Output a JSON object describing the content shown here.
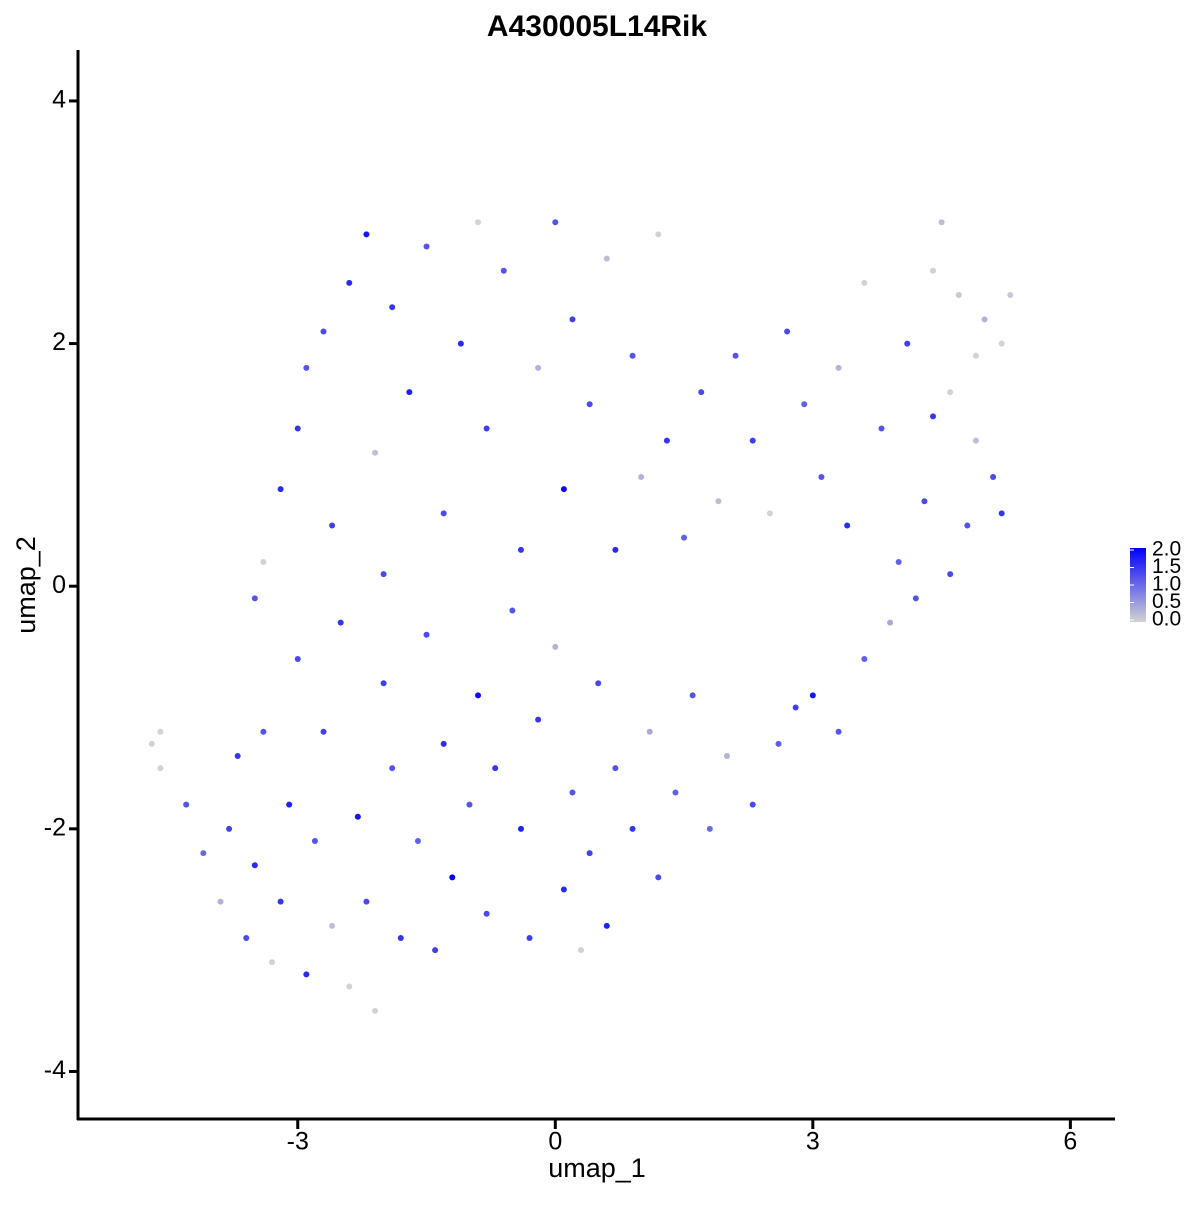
{
  "chart_data": {
    "type": "scatter",
    "title": "A430005L14Rik",
    "x_label": "umap_1",
    "y_label": "umap_2",
    "xlim": [
      -5.56,
      6.52
    ],
    "ylim": [
      -4.4,
      4.42
    ],
    "xticks": [
      -3,
      0,
      3,
      6
    ],
    "yticks": [
      -4,
      -2,
      0,
      2,
      4
    ],
    "low_color": "#d3d3d3",
    "high_color": "#0000ff",
    "colorbar_ticks": [
      {
        "value": 0,
        "label": "0.0"
      },
      {
        "value": 0.5,
        "label": "0.5"
      },
      {
        "value": 1,
        "label": "1.0"
      },
      {
        "value": 1.5,
        "label": "1.5"
      },
      {
        "value": 2,
        "label": "2.0"
      }
    ],
    "x": [
      -4.7,
      -4.6,
      -4.6,
      -4.3,
      -4.1,
      -3.9,
      -3.8,
      -3.7,
      -3.6,
      -3.5,
      -3.4,
      -3.3,
      -3.2,
      -3.1,
      -3.0,
      -2.9,
      -2.8,
      -2.7,
      -2.6,
      -2.5,
      -2.4,
      -2.3,
      -2.2,
      -2.1,
      -2.0,
      -1.9,
      -1.8,
      -1.6,
      -1.5,
      -1.4,
      -1.3,
      -1.2,
      -1.0,
      -0.9,
      -0.8,
      -0.7,
      -0.5,
      -0.4,
      -0.3,
      -0.2,
      0.0,
      0.1,
      0.2,
      0.3,
      0.4,
      0.5,
      0.6,
      0.7,
      0.9,
      1.1,
      1.2,
      1.4,
      1.6,
      1.8,
      2.0,
      2.3,
      2.6,
      2.8,
      3.0,
      3.3,
      3.6,
      3.9,
      4.2,
      4.6,
      -3.5,
      -3.4,
      -3.2,
      -3.0,
      -2.9,
      -2.7,
      -2.6,
      -2.4,
      -2.2,
      -2.1,
      -2.0,
      -1.9,
      -1.7,
      -1.5,
      -1.3,
      -1.1,
      -0.9,
      -0.8,
      -0.6,
      -0.4,
      -0.2,
      0.0,
      0.1,
      0.2,
      0.4,
      0.6,
      0.7,
      0.9,
      1.0,
      1.2,
      1.3,
      1.5,
      1.7,
      1.9,
      2.1,
      2.3,
      2.5,
      2.7,
      2.9,
      3.1,
      3.3,
      3.4,
      3.6,
      3.8,
      4.0,
      4.1,
      4.3,
      4.4,
      4.5,
      4.6,
      4.7,
      4.8,
      4.9,
      5.0,
      5.1,
      5.2,
      5.3,
      5.2,
      4.9,
      4.4
    ],
    "y": [
      -1.3,
      -1.2,
      -1.5,
      -1.8,
      -2.2,
      -2.6,
      -2.0,
      -1.4,
      -2.9,
      -2.3,
      -1.2,
      -3.1,
      -2.6,
      -1.8,
      -0.6,
      -3.2,
      -2.1,
      -1.2,
      -2.8,
      -0.3,
      -3.3,
      -1.9,
      -2.6,
      -3.5,
      -0.8,
      -1.5,
      -2.9,
      -2.1,
      -0.4,
      -3.0,
      -1.3,
      -2.4,
      -1.8,
      -0.9,
      -2.7,
      -1.5,
      -0.2,
      -2.0,
      -2.9,
      -1.1,
      -0.5,
      -2.5,
      -1.7,
      -3.0,
      -2.2,
      -0.8,
      -2.8,
      -1.5,
      -2.0,
      -1.2,
      -2.4,
      -1.7,
      -0.9,
      -2.0,
      -1.4,
      -1.8,
      -1.3,
      -1.0,
      -0.9,
      -1.2,
      -0.6,
      -0.3,
      -0.1,
      0.1,
      -0.1,
      0.2,
      0.8,
      1.3,
      1.8,
      2.1,
      0.5,
      2.5,
      2.9,
      1.1,
      0.1,
      2.3,
      1.6,
      2.8,
      0.6,
      2.0,
      3.0,
      1.3,
      2.6,
      0.3,
      1.8,
      3.0,
      0.8,
      2.2,
      1.5,
      2.7,
      0.3,
      1.9,
      0.9,
      2.9,
      1.2,
      0.4,
      1.6,
      0.7,
      1.9,
      1.2,
      0.6,
      2.1,
      1.5,
      0.9,
      1.8,
      0.5,
      2.5,
      1.3,
      0.2,
      2.0,
      0.7,
      2.6,
      3.0,
      1.6,
      2.4,
      0.5,
      1.9,
      2.2,
      0.9,
      2.0,
      2.4,
      0.6,
      1.2,
      1.4
    ],
    "color_values": [
      0,
      0,
      0,
      1.2,
      1.0,
      0.3,
      1.4,
      1.5,
      1.3,
      1.6,
      1.2,
      0,
      1.5,
      1.7,
      1.3,
      1.6,
      1.2,
      1.4,
      0.2,
      1.5,
      0,
      1.8,
      1.3,
      0,
      1.4,
      1.2,
      1.5,
      1.1,
      1.3,
      1.4,
      1.6,
      2.0,
      1.2,
      1.9,
      1.3,
      1.5,
      1.2,
      1.7,
      1.4,
      1.5,
      0.3,
      1.6,
      1.2,
      0,
      1.4,
      1.3,
      1.7,
      1.2,
      1.5,
      0.4,
      1.3,
      1.1,
      1.2,
      1.0,
      0.3,
      1.3,
      1.1,
      1.4,
      1.8,
      1.2,
      1.1,
      0.4,
      1.2,
      1.3,
      1.2,
      0,
      1.6,
      1.5,
      1.2,
      1.3,
      1.4,
      1.6,
      1.8,
      0.2,
      1.3,
      1.5,
      1.7,
      1.2,
      1.3,
      1.6,
      0,
      1.4,
      1.2,
      1.5,
      0.3,
      1.2,
      1.9,
      1.4,
      1.3,
      0.2,
      1.6,
      1.2,
      0.3,
      0,
      1.5,
      1.1,
      1.3,
      0.2,
      1.2,
      1.4,
      0,
      1.3,
      1.1,
      1.2,
      0.3,
      1.6,
      0,
      1.2,
      1.1,
      1.4,
      1.3,
      0,
      0.2,
      0,
      0.1,
      1.2,
      0,
      0.3,
      1.3,
      0,
      0.1,
      1.5,
      0.2,
      1.5
    ]
  }
}
